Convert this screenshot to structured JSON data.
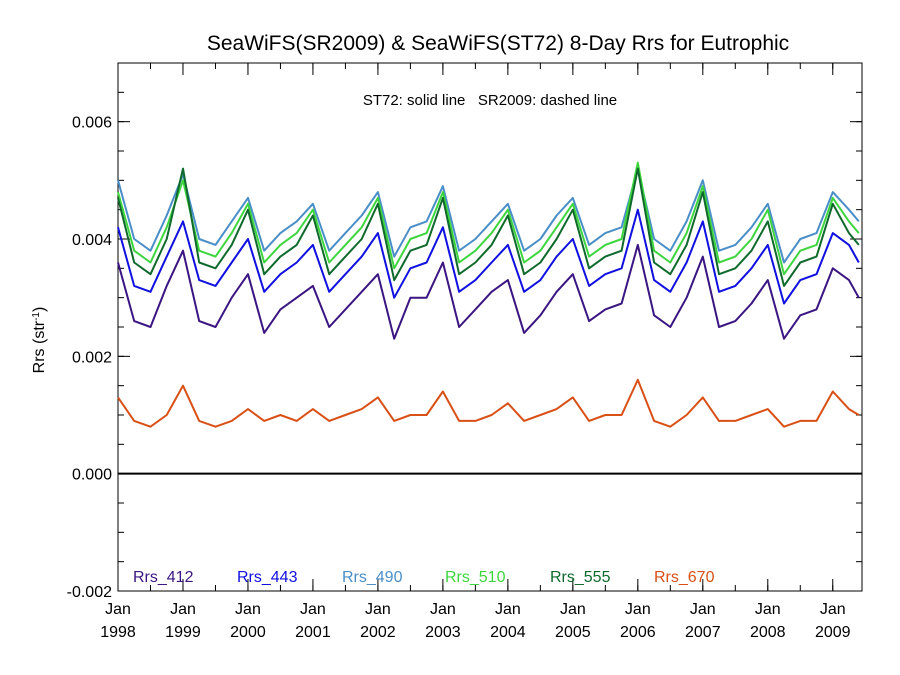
{
  "chart_data": {
    "type": "line",
    "title": "SeaWiFS(SR2009) & SeaWiFS(ST72) 8-Day Rrs for Eutrophic",
    "annotation": "ST72: solid line   SR2009: dashed line",
    "ylabel": "Rrs (str",
    "ylabel_sup": "-1",
    "ylabel_close": ")",
    "ylim": [
      -0.002,
      0.007
    ],
    "xlim": [
      1998.0,
      2009.45
    ],
    "yticks": [
      {
        "value": -0.002,
        "label": "-0.002"
      },
      {
        "value": 0.0,
        "label": "0.000"
      },
      {
        "value": 0.002,
        "label": "0.002"
      },
      {
        "value": 0.004,
        "label": "0.004"
      },
      {
        "value": 0.006,
        "label": "0.006"
      }
    ],
    "xticks": [
      {
        "value": 1998,
        "line1": "Jan",
        "line2": "1998"
      },
      {
        "value": 1999,
        "line1": "Jan",
        "line2": "1999"
      },
      {
        "value": 2000,
        "line1": "Jan",
        "line2": "2000"
      },
      {
        "value": 2001,
        "line1": "Jan",
        "line2": "2001"
      },
      {
        "value": 2002,
        "line1": "Jan",
        "line2": "2002"
      },
      {
        "value": 2003,
        "line1": "Jan",
        "line2": "2003"
      },
      {
        "value": 2004,
        "line1": "Jan",
        "line2": "2004"
      },
      {
        "value": 2005,
        "line1": "Jan",
        "line2": "2005"
      },
      {
        "value": 2006,
        "line1": "Jan",
        "line2": "2006"
      },
      {
        "value": 2007,
        "line1": "Jan",
        "line2": "2007"
      },
      {
        "value": 2008,
        "line1": "Jan",
        "line2": "2008"
      },
      {
        "value": 2009,
        "line1": "Jan",
        "line2": "2009"
      }
    ],
    "zero_line": true,
    "grid": false,
    "legend_position": "bottom",
    "x": [
      1998.0,
      1998.25,
      1998.5,
      1998.75,
      1999.0,
      1999.25,
      1999.5,
      1999.75,
      2000.0,
      2000.25,
      2000.5,
      2000.75,
      2001.0,
      2001.25,
      2001.5,
      2001.75,
      2002.0,
      2002.25,
      2002.5,
      2002.75,
      2003.0,
      2003.25,
      2003.5,
      2003.75,
      2004.0,
      2004.25,
      2004.5,
      2004.75,
      2005.0,
      2005.25,
      2005.5,
      2005.75,
      2006.0,
      2006.25,
      2006.5,
      2006.75,
      2007.0,
      2007.25,
      2007.5,
      2007.75,
      2008.0,
      2008.25,
      2008.5,
      2008.75,
      2009.0,
      2009.25,
      2009.4
    ],
    "series": [
      {
        "name": "Rrs_412",
        "color": "#3b1582",
        "values": [
          0.0036,
          0.0026,
          0.0025,
          0.0032,
          0.0038,
          0.0026,
          0.0025,
          0.003,
          0.0034,
          0.0024,
          0.0028,
          0.003,
          0.0032,
          0.0025,
          0.0028,
          0.0031,
          0.0034,
          0.0023,
          0.003,
          0.003,
          0.0036,
          0.0025,
          0.0028,
          0.0031,
          0.0033,
          0.0024,
          0.0027,
          0.0031,
          0.0034,
          0.0026,
          0.0028,
          0.0029,
          0.0039,
          0.0027,
          0.0025,
          0.003,
          0.0037,
          0.0025,
          0.0026,
          0.0029,
          0.0033,
          0.0023,
          0.0027,
          0.0028,
          0.0035,
          0.0033,
          0.003
        ]
      },
      {
        "name": "Rrs_443",
        "color": "#1010e0",
        "values": [
          0.0042,
          0.0032,
          0.0031,
          0.0037,
          0.0043,
          0.0033,
          0.0032,
          0.0036,
          0.004,
          0.0031,
          0.0034,
          0.0036,
          0.0039,
          0.0031,
          0.0034,
          0.0037,
          0.0041,
          0.003,
          0.0035,
          0.0036,
          0.0042,
          0.0031,
          0.0033,
          0.0036,
          0.0039,
          0.0031,
          0.0033,
          0.0037,
          0.004,
          0.0032,
          0.0034,
          0.0035,
          0.0045,
          0.0033,
          0.0031,
          0.0036,
          0.0043,
          0.0031,
          0.0032,
          0.0035,
          0.0039,
          0.0029,
          0.0033,
          0.0034,
          0.0041,
          0.0039,
          0.0036
        ]
      },
      {
        "name": "Rrs_490",
        "color": "#4a8ec8",
        "values": [
          0.005,
          0.004,
          0.0038,
          0.0044,
          0.0051,
          0.004,
          0.0039,
          0.0043,
          0.0047,
          0.0038,
          0.0041,
          0.0043,
          0.0046,
          0.0038,
          0.0041,
          0.0044,
          0.0048,
          0.0037,
          0.0042,
          0.0043,
          0.0049,
          0.0038,
          0.004,
          0.0043,
          0.0046,
          0.0038,
          0.004,
          0.0044,
          0.0047,
          0.0039,
          0.0041,
          0.0042,
          0.0052,
          0.004,
          0.0038,
          0.0043,
          0.005,
          0.0038,
          0.0039,
          0.0042,
          0.0046,
          0.0036,
          0.004,
          0.0041,
          0.0048,
          0.0045,
          0.0043
        ]
      },
      {
        "name": "Rrs_510",
        "color": "#3ed63e",
        "values": [
          0.0048,
          0.0038,
          0.0036,
          0.0042,
          0.005,
          0.0038,
          0.0037,
          0.0041,
          0.0046,
          0.0036,
          0.0039,
          0.0041,
          0.0045,
          0.0036,
          0.0039,
          0.0042,
          0.0047,
          0.0035,
          0.004,
          0.0041,
          0.0048,
          0.0036,
          0.0038,
          0.0041,
          0.0045,
          0.0036,
          0.0038,
          0.0042,
          0.0046,
          0.0037,
          0.0039,
          0.004,
          0.0053,
          0.0038,
          0.0036,
          0.0041,
          0.0049,
          0.0036,
          0.0037,
          0.004,
          0.0045,
          0.0034,
          0.0038,
          0.0039,
          0.0047,
          0.0043,
          0.0041
        ]
      },
      {
        "name": "Rrs_555",
        "color": "#0f6a2c",
        "values": [
          0.0047,
          0.0036,
          0.0034,
          0.004,
          0.0052,
          0.0036,
          0.0035,
          0.0039,
          0.0045,
          0.0034,
          0.0037,
          0.0039,
          0.0044,
          0.0034,
          0.0037,
          0.004,
          0.0046,
          0.0033,
          0.0038,
          0.0039,
          0.0047,
          0.0034,
          0.0036,
          0.0039,
          0.0044,
          0.0034,
          0.0036,
          0.004,
          0.0045,
          0.0035,
          0.0037,
          0.0038,
          0.0052,
          0.0036,
          0.0034,
          0.0039,
          0.0048,
          0.0034,
          0.0035,
          0.0038,
          0.0043,
          0.0032,
          0.0036,
          0.0037,
          0.0046,
          0.0041,
          0.0039
        ]
      },
      {
        "name": "Rrs_670",
        "color": "#d95016",
        "values": [
          0.0013,
          0.0009,
          0.0008,
          0.001,
          0.0015,
          0.0009,
          0.0008,
          0.0009,
          0.0011,
          0.0009,
          0.001,
          0.0009,
          0.0011,
          0.0009,
          0.001,
          0.0011,
          0.0013,
          0.0009,
          0.001,
          0.001,
          0.0014,
          0.0009,
          0.0009,
          0.001,
          0.0012,
          0.0009,
          0.001,
          0.0011,
          0.0013,
          0.0009,
          0.001,
          0.001,
          0.0016,
          0.0009,
          0.0008,
          0.001,
          0.0013,
          0.0009,
          0.0009,
          0.001,
          0.0011,
          0.0008,
          0.0009,
          0.0009,
          0.0014,
          0.0011,
          0.001
        ]
      }
    ]
  }
}
